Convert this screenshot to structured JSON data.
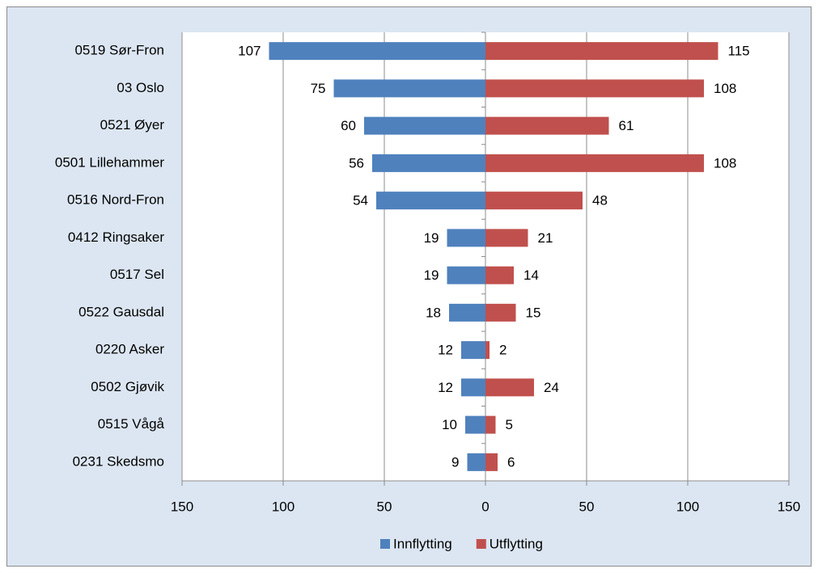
{
  "chart_data": {
    "type": "diverging-bar",
    "categories": [
      "0519 Sør-Fron",
      "03 Oslo",
      "0521 Øyer",
      "0501 Lillehammer",
      "0516 Nord-Fron",
      "0412 Ringsaker",
      "0517 Sel",
      "0522 Gausdal",
      "0220 Asker",
      "0502 Gjøvik",
      "0515 Vågå",
      "0231 Skedsmo"
    ],
    "series": [
      {
        "name": "Innflytting",
        "color": "#4f81bd",
        "values": [
          -107,
          -75,
          -60,
          -56,
          -54,
          -19,
          -19,
          -18,
          -12,
          -12,
          -10,
          -9
        ],
        "value_labels": [
          "107",
          "75",
          "60",
          "56",
          "54",
          "19",
          "19",
          "18",
          "12",
          "12",
          "10",
          "9"
        ]
      },
      {
        "name": "Utflytting",
        "color": "#c0504d",
        "values": [
          115,
          108,
          61,
          108,
          48,
          21,
          14,
          15,
          2,
          24,
          5,
          6
        ]
      }
    ],
    "xlim": [
      -150,
      150
    ],
    "xticks": [
      {
        "value": -150,
        "label": "150"
      },
      {
        "value": -100,
        "label": "100"
      },
      {
        "value": -50,
        "label": "50"
      },
      0,
      50,
      100,
      150
    ],
    "grid": true,
    "legend": "bottom"
  }
}
